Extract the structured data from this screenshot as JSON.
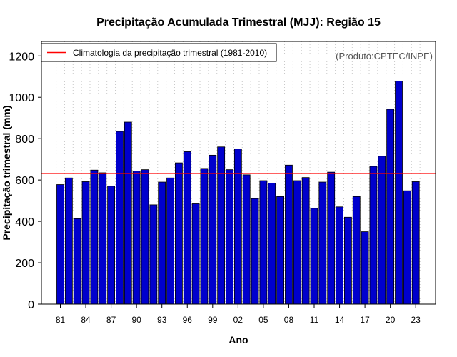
{
  "chart_data": {
    "type": "bar",
    "title": "Precipitação Acumulada Trimestral (MJJ): Região 15",
    "xlabel": "Ano",
    "ylabel": "Precipitação trimestral (mm)",
    "ylim": [
      0,
      1270
    ],
    "yticks": [
      0,
      200,
      400,
      600,
      800,
      1000,
      1200
    ],
    "xtick_labels": [
      "81",
      "84",
      "87",
      "90",
      "93",
      "96",
      "99",
      "02",
      "05",
      "08",
      "11",
      "14",
      "17",
      "20",
      "23"
    ],
    "categories": [
      1981,
      1982,
      1983,
      1984,
      1985,
      1986,
      1987,
      1988,
      1989,
      1990,
      1991,
      1992,
      1993,
      1994,
      1995,
      1996,
      1997,
      1998,
      1999,
      2000,
      2001,
      2002,
      2003,
      2004,
      2005,
      2006,
      2007,
      2008,
      2009,
      2010,
      2011,
      2012,
      2013,
      2014,
      2015,
      2016,
      2017,
      2018,
      2019,
      2020,
      2021,
      2022,
      2023
    ],
    "values": [
      578,
      610,
      413,
      592,
      648,
      635,
      570,
      835,
      880,
      643,
      650,
      480,
      590,
      610,
      683,
      737,
      485,
      656,
      720,
      760,
      650,
      750,
      625,
      510,
      597,
      585,
      520,
      672,
      597,
      612,
      463,
      590,
      638,
      470,
      420,
      520,
      350,
      666,
      715,
      942,
      1078,
      548,
      592
    ],
    "bar_color": "#0000CD",
    "climatology": {
      "label": "Climatologia da precipitação trimestral (1981-2010)",
      "value": 631,
      "color": "#FF0000"
    },
    "legend_position": "top-left",
    "grid": "vertical-dotted"
  },
  "credit": "(Produto:CPTEC/INPE)"
}
